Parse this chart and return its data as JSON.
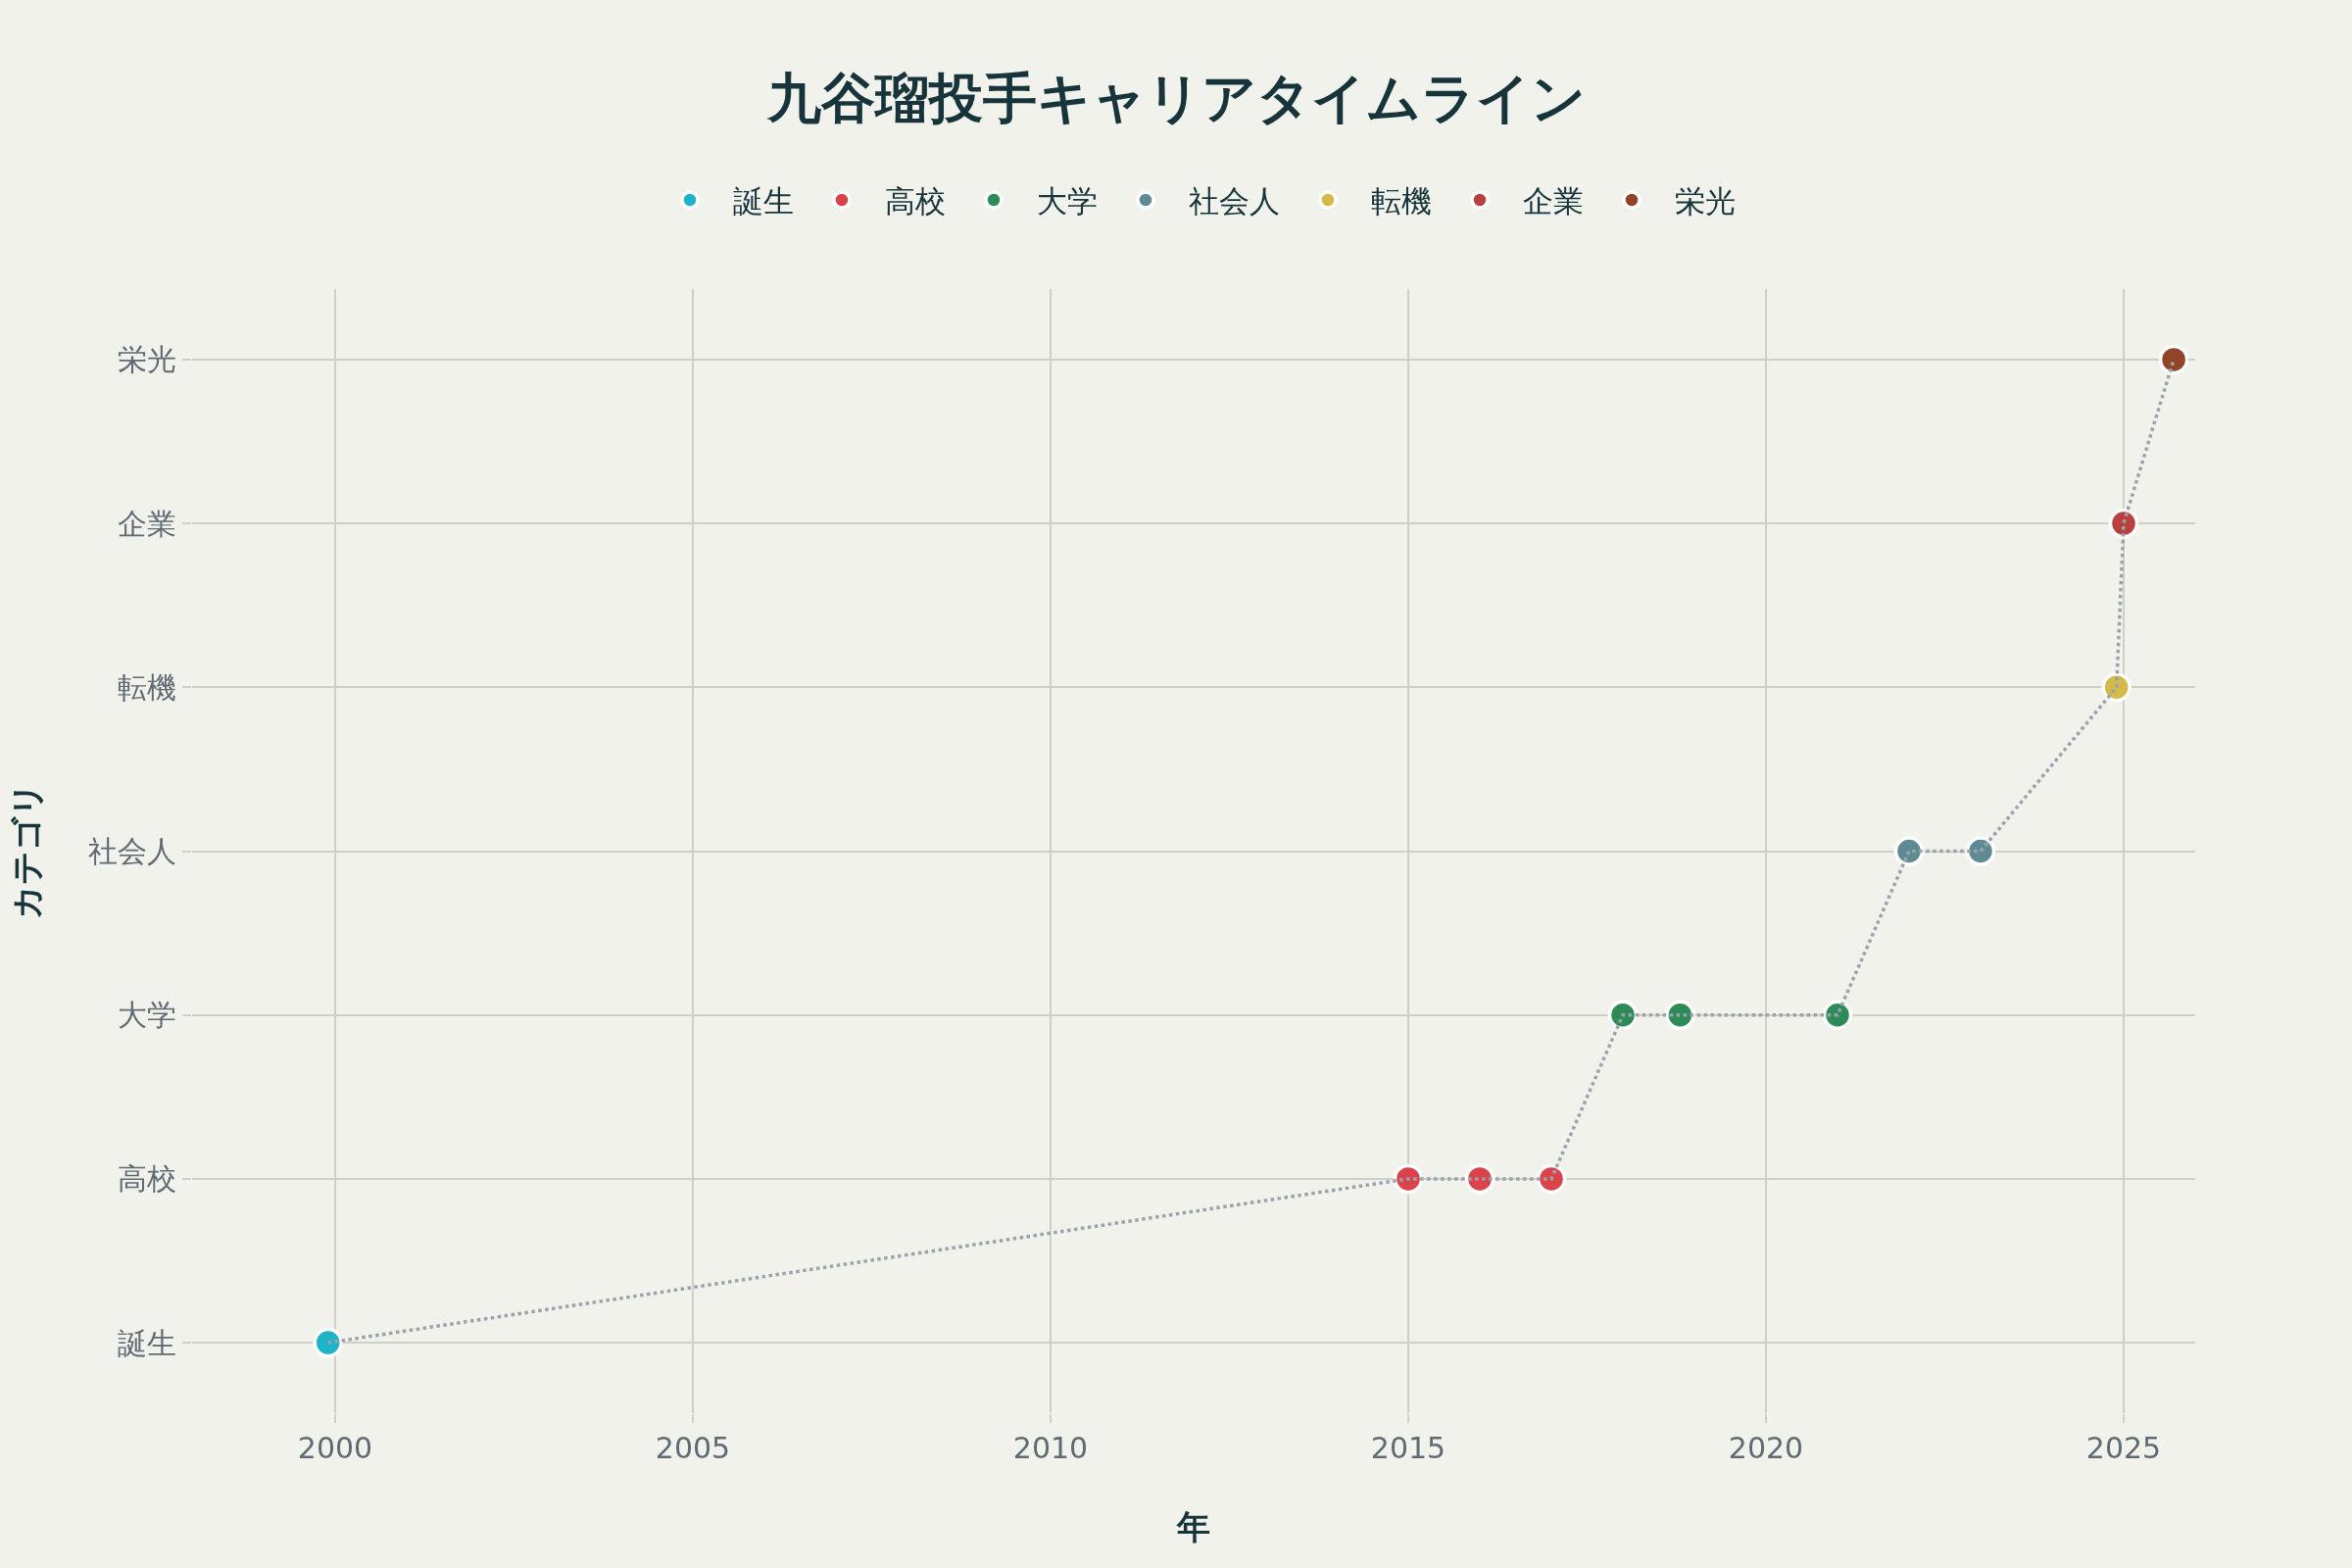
{
  "chart_data": {
    "type": "scatter",
    "orientation": "horizontal",
    "title": "九谷瑠投手キャリアタイムライン",
    "xlabel": "年",
    "ylabel": "カテゴリ",
    "categories": [
      "栄光",
      "企業",
      "転機",
      "社会人",
      "大学",
      "高校",
      "誕生"
    ],
    "xlim": [
      1998,
      2026
    ],
    "xticks": [
      2000,
      2005,
      2010,
      2015,
      2020,
      2025
    ],
    "grid": true,
    "legend": "top",
    "marker": "circle",
    "series": [
      {
        "name": "誕生",
        "color": "#1fb3c9",
        "x": [
          "誕生"
        ],
        "values": [
          1999.9
        ]
      },
      {
        "name": "高校",
        "color": "#dc4249",
        "x": [
          "高校",
          "高校",
          "高校"
        ],
        "values": [
          2015.0,
          2016.0,
          2017.0
        ]
      },
      {
        "name": "大学",
        "color": "#2e8b57",
        "x": [
          "大学",
          "大学",
          "大学"
        ],
        "values": [
          2018.0,
          2018.8,
          2021.0
        ]
      },
      {
        "name": "社会人",
        "color": "#5e8a94",
        "x": [
          "社会人",
          "社会人"
        ],
        "values": [
          2022.0,
          2023.0
        ]
      },
      {
        "name": "転機",
        "color": "#d4b94b",
        "x": [
          "転機"
        ],
        "values": [
          2024.9
        ]
      },
      {
        "name": "企業",
        "color": "#b8403f",
        "x": [
          "企業"
        ],
        "values": [
          2025.0
        ]
      },
      {
        "name": "栄光",
        "color": "#924426",
        "x": [
          "栄光"
        ],
        "values": [
          2025.7
        ]
      },
      {
        "type": "line",
        "color": "#9aa3ad",
        "line_style": "dotted",
        "marker": "none",
        "x": [
          "誕生",
          "高校",
          "高校",
          "高校",
          "大学",
          "大学",
          "大学",
          "社会人",
          "社会人",
          "転機",
          "企業",
          "栄光"
        ],
        "values": [
          1999.9,
          2015.0,
          2016.0,
          2017.0,
          2018.0,
          2018.8,
          2021.0,
          2022.0,
          2023.0,
          2024.9,
          2025.0,
          2025.7
        ]
      }
    ]
  }
}
